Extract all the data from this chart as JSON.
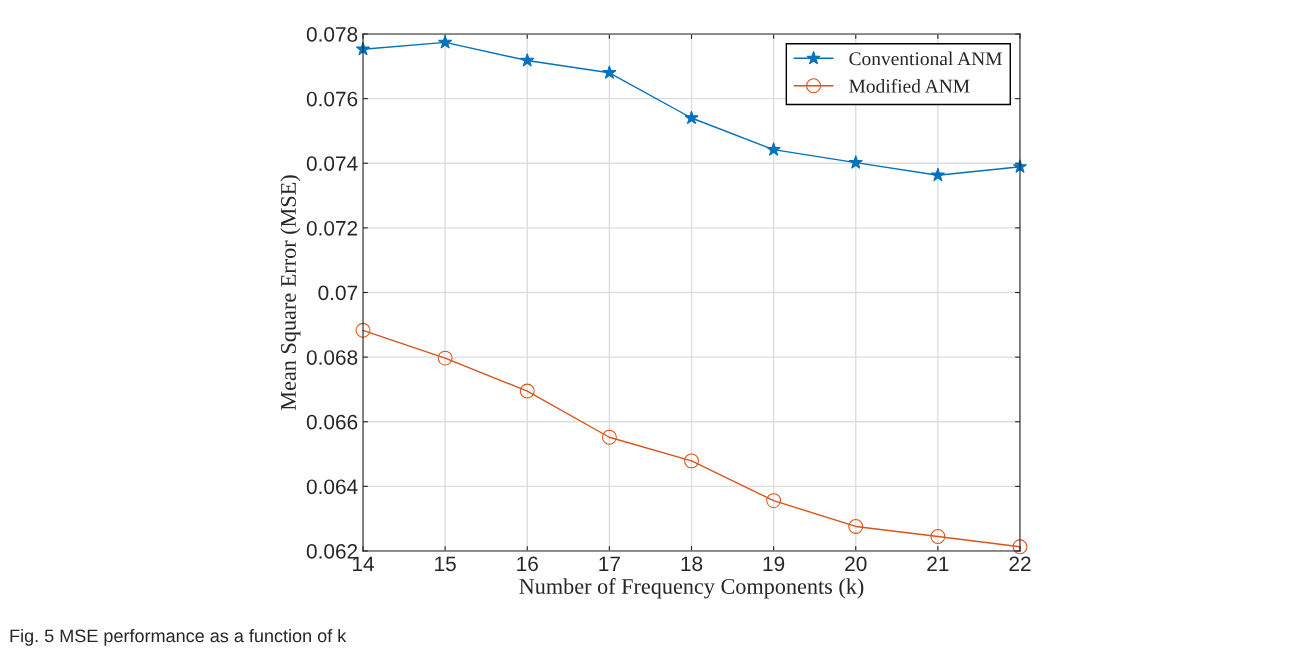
{
  "chart_data": {
    "type": "line",
    "xlabel": "Number of Frequency Components (k)",
    "ylabel": "Mean Square Error (MSE)",
    "annotations": [
      "Fig. 5 MSE performance as a function of k"
    ],
    "x": [
      14,
      15,
      16,
      17,
      18,
      19,
      20,
      21,
      22
    ],
    "series": [
      {
        "name": "Conventional ANM",
        "color": "#0072bd",
        "marker": "star",
        "values": [
          0.07753,
          0.07774,
          0.07718,
          0.0768,
          0.0754,
          0.07442,
          0.07402,
          0.07363,
          0.07389
        ]
      },
      {
        "name": "Modified ANM",
        "color": "#d95319",
        "marker": "circle",
        "values": [
          0.06883,
          0.06797,
          0.06695,
          0.06552,
          0.06479,
          0.06356,
          0.06276,
          0.06245,
          0.06213
        ]
      }
    ],
    "xlim": [
      14,
      22
    ],
    "xticks": [
      14,
      15,
      16,
      17,
      18,
      19,
      20,
      21,
      22
    ],
    "ylim": [
      0.062,
      0.078
    ],
    "yticks": [
      {
        "value": 0.062,
        "label": "0.062"
      },
      {
        "value": 0.064,
        "label": "0.064"
      },
      {
        "value": 0.066,
        "label": "0.066"
      },
      {
        "value": 0.068,
        "label": "0.068"
      },
      {
        "value": 0.07,
        "label": "0.07"
      },
      {
        "value": 0.072,
        "label": "0.072"
      },
      {
        "value": 0.074,
        "label": "0.074"
      },
      {
        "value": 0.076,
        "label": "0.076"
      },
      {
        "value": 0.078,
        "label": "0.078"
      }
    ],
    "grid": true,
    "legend": "top right",
    "line_style": "solid"
  }
}
